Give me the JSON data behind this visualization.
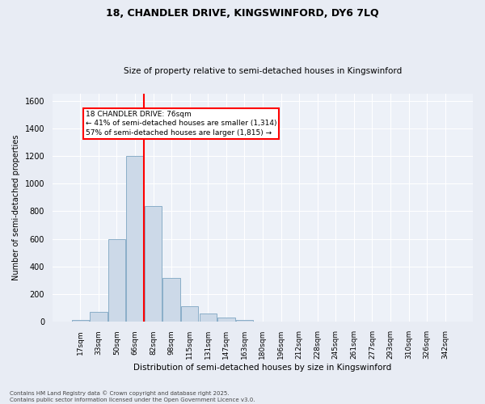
{
  "title1": "18, CHANDLER DRIVE, KINGSWINFORD, DY6 7LQ",
  "title2": "Size of property relative to semi-detached houses in Kingswinford",
  "xlabel": "Distribution of semi-detached houses by size in Kingswinford",
  "ylabel": "Number of semi-detached properties",
  "footnote": "Contains HM Land Registry data © Crown copyright and database right 2025.\nContains public sector information licensed under the Open Government Licence v3.0.",
  "bar_labels": [
    "17sqm",
    "33sqm",
    "50sqm",
    "66sqm",
    "82sqm",
    "98sqm",
    "115sqm",
    "131sqm",
    "147sqm",
    "163sqm",
    "180sqm",
    "196sqm",
    "212sqm",
    "228sqm",
    "245sqm",
    "261sqm",
    "277sqm",
    "293sqm",
    "310sqm",
    "326sqm",
    "342sqm"
  ],
  "bar_values": [
    15,
    70,
    600,
    1200,
    840,
    315,
    115,
    60,
    30,
    15,
    0,
    0,
    0,
    0,
    0,
    0,
    0,
    0,
    0,
    0,
    0
  ],
  "bar_color": "#ccd9e8",
  "bar_edge_color": "#8aaec8",
  "vline_color": "red",
  "annotation_title": "18 CHANDLER DRIVE: 76sqm",
  "annotation_line1": "← 41% of semi-detached houses are smaller (1,314)",
  "annotation_line2": "57% of semi-detached houses are larger (1,815) →",
  "annotation_box_color": "white",
  "annotation_box_edge": "red",
  "ylim": [
    0,
    1650
  ],
  "background_color": "#e8ecf4",
  "plot_bg_color": "#edf1f8",
  "title1_fontsize": 9,
  "title2_fontsize": 7.5,
  "ylabel_fontsize": 7,
  "xlabel_fontsize": 7.5,
  "tick_fontsize": 6.5,
  "annot_fontsize": 6.5,
  "footnote_fontsize": 5
}
